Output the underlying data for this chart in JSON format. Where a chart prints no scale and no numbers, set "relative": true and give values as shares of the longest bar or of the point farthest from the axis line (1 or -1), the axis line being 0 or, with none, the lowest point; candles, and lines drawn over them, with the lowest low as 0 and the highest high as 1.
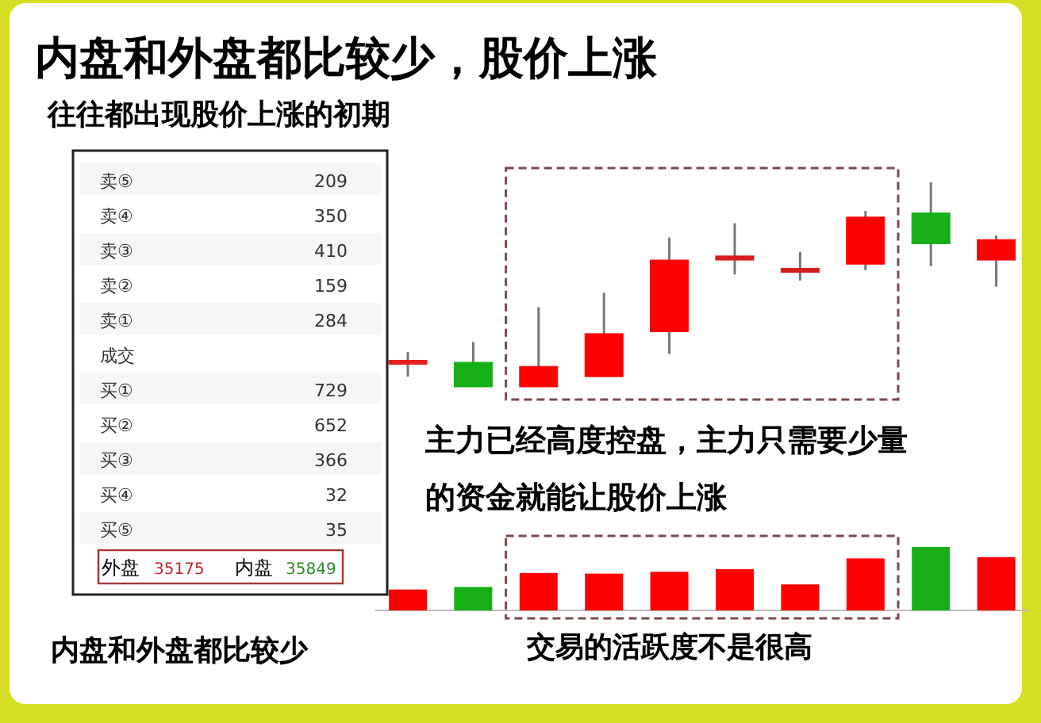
{
  "chart_data": [
    {
      "type": "candlestick",
      "title": "内盘和外盘都比较少，股价上涨",
      "relative": true,
      "categories": [
        null,
        null,
        null,
        null,
        null,
        null,
        null,
        null,
        null,
        null
      ],
      "ohlc": [
        [
          0.11,
          0.17,
          0.05,
          0.13
        ],
        [
          0.12,
          0.22,
          0,
          0
        ],
        [
          0,
          0.39,
          0,
          0.1
        ],
        [
          0.05,
          0.46,
          0.05,
          0.26
        ],
        [
          0.27,
          0.73,
          0.16,
          0.62
        ],
        [
          0.62,
          0.8,
          0.55,
          0.64
        ],
        [
          0.56,
          0.66,
          0.52,
          0.58
        ],
        [
          0.6,
          0.86,
          0.57,
          0.83
        ],
        [
          0.85,
          1,
          0.59,
          0.7
        ],
        [
          0.62,
          0.74,
          0.49,
          0.72
        ]
      ],
      "colors": [
        "#e8201c",
        "#16b016",
        "#ff0000",
        "#ff0000",
        "#ff0000",
        "#d41c1c",
        "#d41c1c",
        "#ff0000",
        "#16b016",
        "#ff0000"
      ],
      "annotations": [
        "主力已经高度控盘，主力只需要少量",
        "的资金就能让股价上涨"
      ]
    },
    {
      "type": "bar",
      "relative": true,
      "categories": [
        null,
        null,
        null,
        null,
        null,
        null,
        null,
        null,
        null,
        null
      ],
      "values": [
        0.33,
        0.37,
        0.59,
        0.58,
        0.61,
        0.65,
        0.41,
        0.82,
        1,
        0.84
      ],
      "colors": [
        "#ff0000",
        "#16b016",
        "#ff0000",
        "#ff0000",
        "#ff0000",
        "#ff0000",
        "#ff0000",
        "#ff0000",
        "#16b016",
        "#ff0000"
      ],
      "annotations": [
        "交易的活跃度不是很高"
      ]
    },
    {
      "type": "other",
      "title": "往往都出现股价上涨的初期",
      "categories": [
        "卖⑤",
        "卖④",
        "卖③",
        "卖②",
        "卖①",
        "成交",
        "买①",
        "买②",
        "买③",
        "买④",
        "买⑤"
      ],
      "values": [
        209,
        350,
        410,
        159,
        284,
        null,
        729,
        652,
        366,
        32,
        35
      ],
      "data_labels": true,
      "annotations": [
        "外盘",
        "35175",
        "内盘",
        "35849",
        "内盘和外盘都比较少"
      ]
    }
  ]
}
